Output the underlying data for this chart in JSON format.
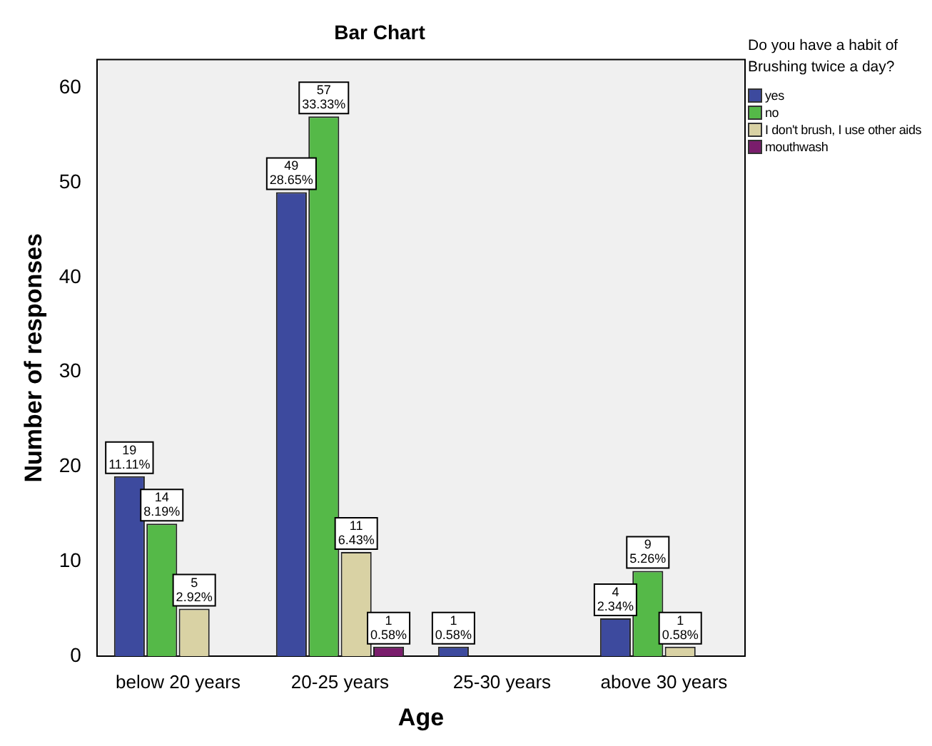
{
  "chart_data": {
    "type": "bar",
    "title": "Bar Chart",
    "xlabel": "Age",
    "ylabel": "Number of responses",
    "legend_title": "Do you have a habit of Brushing twice a day?",
    "categories": [
      "below 20 years",
      "20-25 years",
      "25-30 years",
      "above 30 years"
    ],
    "series": [
      {
        "name": "yes",
        "color": "#3d4a9e",
        "values": [
          19,
          49,
          1,
          4
        ],
        "value_labels": [
          "19\n11.11%",
          "49\n28.65%",
          "1\n0.58%",
          "4\n2.34%"
        ]
      },
      {
        "name": "no",
        "color": "#55b948",
        "values": [
          14,
          57,
          null,
          9
        ],
        "value_labels": [
          "14\n8.19%",
          "57\n33.33%",
          null,
          "9\n5.26%"
        ]
      },
      {
        "name": "I don't brush, I use other aids",
        "color": "#d9d2a4",
        "values": [
          5,
          11,
          null,
          1
        ],
        "value_labels": [
          "5\n2.92%",
          "11\n6.43%",
          null,
          "1\n0.58%"
        ]
      },
      {
        "name": "mouthwash",
        "color": "#7a1d6c",
        "values": [
          null,
          1,
          null,
          null
        ],
        "value_labels": [
          null,
          "1\n0.58%",
          null,
          null
        ]
      }
    ],
    "ylim": [
      0,
      63
    ],
    "yticks": [
      0,
      10,
      20,
      30,
      40,
      50,
      60
    ],
    "grid": false,
    "legend": "top right"
  }
}
